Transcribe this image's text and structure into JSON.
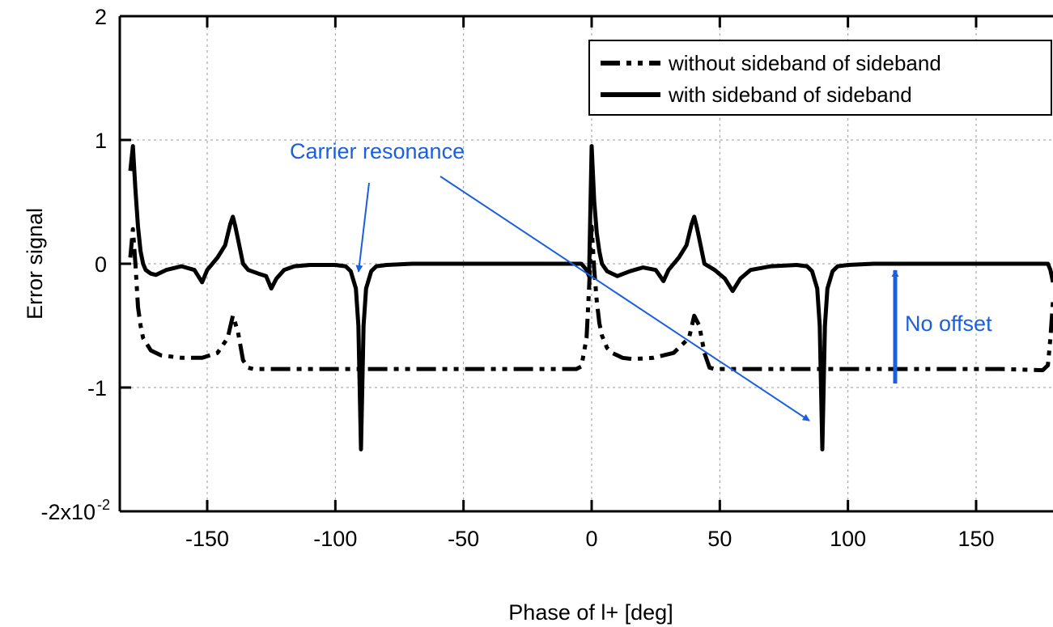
{
  "chart_data": {
    "type": "line",
    "xlabel": "Phase of l+ [deg]",
    "ylabel": "Error signal",
    "xlim": [
      -180,
      180
    ],
    "ylim": [
      -2,
      2
    ],
    "x_ticks": [
      -150,
      -100,
      -50,
      0,
      50,
      100,
      150
    ],
    "x_tick_labels": [
      "-150",
      "-100",
      "-50",
      "0",
      "50",
      "100",
      "150"
    ],
    "y_ticks": [
      -2,
      -1,
      0,
      1,
      2
    ],
    "y_tick_labels": [
      "-2x10",
      "-1",
      "0",
      "1",
      "2"
    ],
    "y_tick_exponent": "-2",
    "grid": true,
    "legend_position": "top-right",
    "series": [
      {
        "name": "without sideband of sideband",
        "style": "dash-dot-dot",
        "color": "#000000",
        "x": [
          -180,
          -179,
          -178,
          -177,
          -176,
          -175,
          -172,
          -168,
          -160,
          -152,
          -146,
          -142,
          -140,
          -138,
          -136,
          -134,
          -132,
          -128,
          -120,
          -100,
          -80,
          -60,
          -40,
          -20,
          -6,
          -4,
          -2,
          -1,
          0,
          1,
          2,
          3,
          4,
          6,
          8,
          10,
          12,
          16,
          24,
          32,
          38,
          40,
          42,
          44,
          46,
          48,
          52,
          60,
          80,
          100,
          120,
          140,
          160,
          176,
          178,
          179,
          180
        ],
        "y": [
          0.05,
          0.28,
          0.0,
          -0.35,
          -0.5,
          -0.6,
          -0.7,
          -0.74,
          -0.76,
          -0.76,
          -0.72,
          -0.6,
          -0.42,
          -0.55,
          -0.78,
          -0.84,
          -0.85,
          -0.85,
          -0.85,
          -0.85,
          -0.85,
          -0.85,
          -0.85,
          -0.85,
          -0.85,
          -0.83,
          -0.6,
          -0.2,
          0.3,
          -0.05,
          -0.3,
          -0.48,
          -0.58,
          -0.68,
          -0.72,
          -0.74,
          -0.76,
          -0.77,
          -0.76,
          -0.72,
          -0.6,
          -0.42,
          -0.5,
          -0.72,
          -0.84,
          -0.85,
          -0.85,
          -0.85,
          -0.85,
          -0.85,
          -0.85,
          -0.85,
          -0.85,
          -0.86,
          -0.82,
          -0.6,
          -0.3
        ]
      },
      {
        "name": "with sideband of sideband",
        "style": "solid",
        "color": "#000000",
        "x": [
          -180,
          -179,
          -178,
          -177,
          -176,
          -175,
          -174,
          -172,
          -170,
          -166,
          -160,
          -155,
          -152,
          -150,
          -146,
          -143,
          -141,
          -140,
          -139,
          -138,
          -136,
          -134,
          -130,
          -127,
          -125,
          -123,
          -120,
          -116,
          -110,
          -100,
          -96,
          -94,
          -92,
          -91,
          -90,
          -89,
          -88,
          -86,
          -84,
          -80,
          -70,
          -50,
          -30,
          -10,
          -4,
          -2,
          -1,
          0,
          1,
          2,
          3,
          4,
          6,
          8,
          10,
          15,
          20,
          25,
          28,
          30,
          34,
          37,
          39,
          40,
          41,
          42,
          44,
          48,
          52,
          55,
          58,
          62,
          70,
          80,
          84,
          86,
          88,
          89,
          90,
          91,
          92,
          94,
          96,
          100,
          110,
          130,
          150,
          170,
          176,
          178,
          179,
          180
        ],
        "y": [
          0.75,
          0.95,
          0.6,
          0.3,
          0.1,
          0.0,
          -0.05,
          -0.08,
          -0.09,
          -0.05,
          -0.02,
          -0.05,
          -0.15,
          -0.05,
          0.05,
          0.15,
          0.32,
          0.38,
          0.3,
          0.2,
          0.0,
          -0.05,
          -0.08,
          -0.1,
          -0.2,
          -0.12,
          -0.05,
          -0.02,
          -0.01,
          -0.01,
          -0.02,
          -0.06,
          -0.2,
          -0.5,
          -1.5,
          -0.5,
          -0.2,
          -0.06,
          -0.02,
          -0.01,
          0.0,
          0.0,
          0.0,
          0.0,
          0.0,
          -0.05,
          -0.1,
          0.95,
          0.5,
          0.25,
          0.1,
          0.0,
          -0.06,
          -0.08,
          -0.1,
          -0.06,
          -0.03,
          -0.05,
          -0.14,
          -0.05,
          0.05,
          0.15,
          0.32,
          0.38,
          0.3,
          0.2,
          0.0,
          -0.05,
          -0.12,
          -0.22,
          -0.12,
          -0.05,
          -0.02,
          -0.01,
          -0.02,
          -0.06,
          -0.2,
          -0.5,
          -1.5,
          -0.5,
          -0.2,
          -0.06,
          -0.02,
          -0.01,
          0.0,
          0.0,
          0.0,
          0.0,
          0.0,
          0.0,
          -0.05,
          -0.15
        ]
      }
    ],
    "annotations": [
      {
        "text": "Carrier resonance",
        "color": "#1a5fe0"
      },
      {
        "text": "No offset",
        "color": "#1a5fe0"
      }
    ]
  }
}
